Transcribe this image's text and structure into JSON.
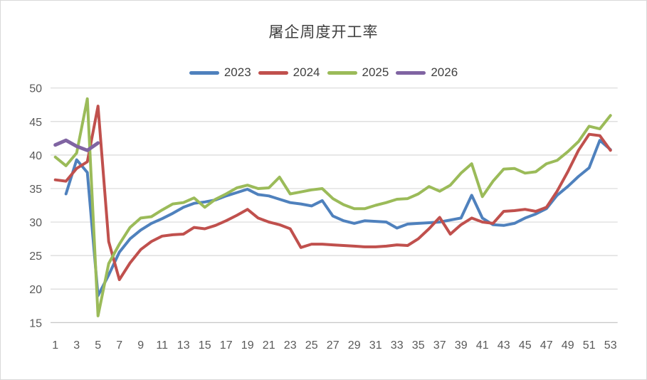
{
  "title": "屠企周度开工率",
  "colors": {
    "grid": "#d9d9d9",
    "axis": "#bfbfbf",
    "tick_text": "#595959",
    "title_text": "#404040",
    "series_2023": "#4F81BD",
    "series_2024": "#C0504D",
    "series_2025": "#9BBB59",
    "series_2026": "#8064A2"
  },
  "chart_data": {
    "type": "line",
    "title": "屠企周度开工率",
    "xlabel": "",
    "ylabel": "",
    "x_unit": "week",
    "x_range": [
      1,
      53
    ],
    "x_ticks": [
      1,
      3,
      5,
      7,
      9,
      11,
      13,
      15,
      17,
      19,
      21,
      23,
      25,
      27,
      29,
      31,
      33,
      35,
      37,
      39,
      41,
      43,
      45,
      47,
      49,
      51,
      53
    ],
    "ylim": [
      15,
      50
    ],
    "y_ticks": [
      15,
      20,
      25,
      30,
      35,
      40,
      45,
      50
    ],
    "grid": "horizontal",
    "legend_position": "top",
    "series": [
      {
        "name": "2023",
        "color": "#4F81BD",
        "values": [
          null,
          34.2,
          39.3,
          37.4,
          19.0,
          22.1,
          25.5,
          27.5,
          28.8,
          29.8,
          30.5,
          31.3,
          32.2,
          32.8,
          33.0,
          33.3,
          33.9,
          34.4,
          34.9,
          34.1,
          33.9,
          33.4,
          32.9,
          32.7,
          32.4,
          33.2,
          30.9,
          30.2,
          29.8,
          30.2,
          30.1,
          30.0,
          29.1,
          29.7,
          29.8,
          29.9,
          30.0,
          30.3,
          30.6,
          34.0,
          30.6,
          29.6,
          29.5,
          29.8,
          30.6,
          31.2,
          32.0,
          34.0,
          35.3,
          36.8,
          38.1,
          42.2,
          40.8
        ]
      },
      {
        "name": "2024",
        "color": "#C0504D",
        "values": [
          36.3,
          36.1,
          38.0,
          39.0,
          47.3,
          27.1,
          21.4,
          23.9,
          25.9,
          27.1,
          27.9,
          28.1,
          28.2,
          29.2,
          29.0,
          29.5,
          30.2,
          31.0,
          31.9,
          30.6,
          30.0,
          29.6,
          29.0,
          26.2,
          26.7,
          26.7,
          26.6,
          26.5,
          26.4,
          26.3,
          26.3,
          26.4,
          26.6,
          26.5,
          27.5,
          29.0,
          30.7,
          28.2,
          29.6,
          30.6,
          30.0,
          29.8,
          31.6,
          31.7,
          31.9,
          31.6,
          32.2,
          34.6,
          37.5,
          40.7,
          43.1,
          42.9,
          40.7
        ]
      },
      {
        "name": "2025",
        "color": "#9BBB59",
        "values": [
          39.7,
          38.4,
          40.3,
          48.4,
          16.0,
          23.8,
          26.7,
          29.2,
          30.6,
          30.8,
          31.8,
          32.7,
          32.9,
          33.6,
          32.2,
          33.4,
          34.2,
          35.1,
          35.5,
          35.0,
          35.1,
          36.7,
          34.2,
          34.5,
          34.8,
          35.0,
          33.5,
          32.6,
          32.0,
          32.0,
          32.5,
          32.9,
          33.4,
          33.5,
          34.2,
          35.3,
          34.6,
          35.5,
          37.3,
          38.7,
          33.8,
          36.1,
          37.9,
          38.0,
          37.3,
          37.5,
          38.7,
          39.2,
          40.5,
          42.0,
          44.3,
          43.9,
          45.9
        ]
      },
      {
        "name": "2026",
        "color": "#8064A2",
        "values": [
          41.5,
          42.2,
          41.3,
          40.7,
          41.8,
          null,
          null,
          null,
          null,
          null,
          null,
          null,
          null,
          null,
          null,
          null,
          null,
          null,
          null,
          null,
          null,
          null,
          null,
          null,
          null,
          null,
          null,
          null,
          null,
          null,
          null,
          null,
          null,
          null,
          null,
          null,
          null,
          null,
          null,
          null,
          null,
          null,
          null,
          null,
          null,
          null,
          null,
          null,
          null,
          null,
          null,
          null,
          null
        ]
      }
    ]
  }
}
